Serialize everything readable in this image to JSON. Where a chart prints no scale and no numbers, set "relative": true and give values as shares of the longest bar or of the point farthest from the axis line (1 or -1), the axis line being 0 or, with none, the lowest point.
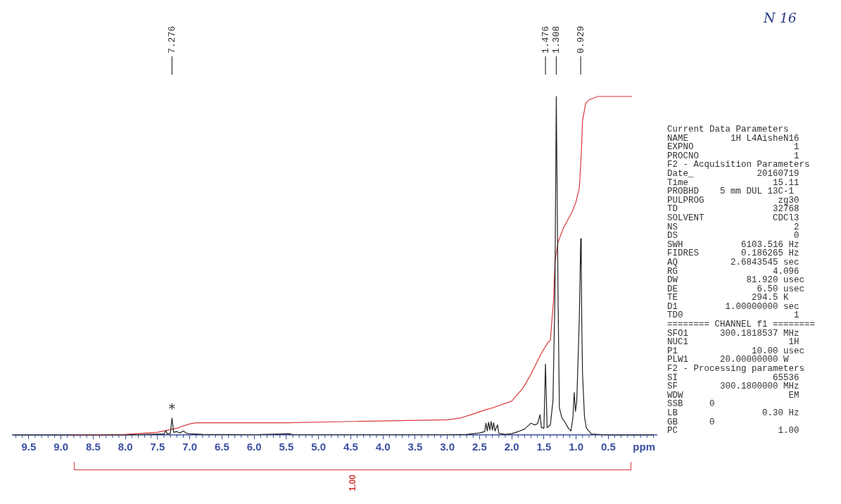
{
  "chart_data": {
    "type": "line",
    "relative": true,
    "xlabel": "ppm",
    "legend": false,
    "grid": false,
    "marker": "none",
    "line_style": "solid",
    "xlim": [
      9.75,
      -0.25
    ],
    "xticks": [
      {
        "value": 9.7,
        "label": null
      },
      {
        "value": 9.6,
        "label": null
      },
      9.5,
      {
        "value": 9.4,
        "label": null
      },
      {
        "value": 9.3,
        "label": null
      },
      {
        "value": 9.2,
        "label": null
      },
      {
        "value": 9.1,
        "label": null
      },
      {
        "value": 9,
        "label": "9.0"
      },
      {
        "value": 8.9,
        "label": null
      },
      {
        "value": 8.8,
        "label": null
      },
      {
        "value": 8.7,
        "label": null
      },
      {
        "value": 8.6,
        "label": null
      },
      8.5,
      {
        "value": 8.4,
        "label": null
      },
      {
        "value": 8.3,
        "label": null
      },
      {
        "value": 8.2,
        "label": null
      },
      {
        "value": 8.1,
        "label": null
      },
      {
        "value": 8,
        "label": "8.0"
      },
      {
        "value": 7.9,
        "label": null
      },
      {
        "value": 7.8,
        "label": null
      },
      {
        "value": 7.7,
        "label": null
      },
      {
        "value": 7.6,
        "label": null
      },
      7.5,
      {
        "value": 7.4,
        "label": null
      },
      {
        "value": 7.3,
        "label": null
      },
      {
        "value": 7.2,
        "label": null
      },
      {
        "value": 7.1,
        "label": null
      },
      {
        "value": 7,
        "label": "7.0"
      },
      {
        "value": 6.9,
        "label": null
      },
      {
        "value": 6.8,
        "label": null
      },
      {
        "value": 6.7,
        "label": null
      },
      {
        "value": 6.6,
        "label": null
      },
      6.5,
      {
        "value": 6.4,
        "label": null
      },
      {
        "value": 6.3,
        "label": null
      },
      {
        "value": 6.2,
        "label": null
      },
      {
        "value": 6.1,
        "label": null
      },
      {
        "value": 6,
        "label": "6.0"
      },
      {
        "value": 5.9,
        "label": null
      },
      {
        "value": 5.8,
        "label": null
      },
      {
        "value": 5.7,
        "label": null
      },
      {
        "value": 5.6,
        "label": null
      },
      5.5,
      {
        "value": 5.4,
        "label": null
      },
      {
        "value": 5.3,
        "label": null
      },
      {
        "value": 5.2,
        "label": null
      },
      {
        "value": 5.1,
        "label": null
      },
      {
        "value": 5,
        "label": "5.0"
      },
      {
        "value": 4.9,
        "label": null
      },
      {
        "value": 4.8,
        "label": null
      },
      {
        "value": 4.7,
        "label": null
      },
      {
        "value": 4.6,
        "label": null
      },
      4.5,
      {
        "value": 4.4,
        "label": null
      },
      {
        "value": 4.3,
        "label": null
      },
      {
        "value": 4.2,
        "label": null
      },
      {
        "value": 4.1,
        "label": null
      },
      {
        "value": 4,
        "label": "4.0"
      },
      {
        "value": 3.9,
        "label": null
      },
      {
        "value": 3.8,
        "label": null
      },
      {
        "value": 3.7,
        "label": null
      },
      {
        "value": 3.6,
        "label": null
      },
      3.5,
      {
        "value": 3.4,
        "label": null
      },
      {
        "value": 3.3,
        "label": null
      },
      {
        "value": 3.2,
        "label": null
      },
      {
        "value": 3.1,
        "label": null
      },
      {
        "value": 3,
        "label": "3.0"
      },
      {
        "value": 2.9,
        "label": null
      },
      {
        "value": 2.8,
        "label": null
      },
      {
        "value": 2.7,
        "label": null
      },
      {
        "value": 2.6,
        "label": null
      },
      2.5,
      {
        "value": 2.4,
        "label": null
      },
      {
        "value": 2.3,
        "label": null
      },
      {
        "value": 2.2,
        "label": null
      },
      {
        "value": 2.1,
        "label": null
      },
      {
        "value": 2,
        "label": "2.0"
      },
      {
        "value": 1.9,
        "label": null
      },
      {
        "value": 1.8,
        "label": null
      },
      {
        "value": 1.7,
        "label": null
      },
      {
        "value": 1.6,
        "label": null
      },
      1.5,
      {
        "value": 1.4,
        "label": null
      },
      {
        "value": 1.3,
        "label": null
      },
      {
        "value": 1.2,
        "label": null
      },
      {
        "value": 1.1,
        "label": null
      },
      {
        "value": 1,
        "label": "1.0"
      },
      {
        "value": 0.9,
        "label": null
      },
      {
        "value": 0.8,
        "label": null
      },
      {
        "value": 0.7,
        "label": null
      },
      {
        "value": 0.6,
        "label": null
      },
      0.5,
      {
        "value": 0.4,
        "label": null
      },
      {
        "value": 0.3,
        "label": null
      },
      {
        "value": 0.2,
        "label": null
      },
      {
        "value": 0.1,
        "label": null
      },
      {
        "value": 0,
        "label": null
      },
      {
        "value": -0.1,
        "label": null
      },
      {
        "value": -0.2,
        "label": null
      }
    ],
    "series": [
      {
        "color": "#222222",
        "x": [
          9.74,
          8.0,
          7.5,
          7.4,
          7.37,
          7.35,
          7.3,
          7.276,
          7.25,
          7.2,
          7.15,
          7.1,
          7.05,
          7.0,
          6.8,
          6.0,
          5.45,
          5.4,
          4.0,
          3.0,
          2.7,
          2.5,
          2.42,
          2.4,
          2.38,
          2.36,
          2.34,
          2.32,
          2.3,
          2.28,
          2.26,
          2.22,
          2.2,
          2.1,
          2.0,
          1.9,
          1.8,
          1.7,
          1.65,
          1.6,
          1.56,
          1.54,
          1.5,
          1.476,
          1.45,
          1.4,
          1.36,
          1.33,
          1.308,
          1.28,
          1.26,
          1.22,
          1.18,
          1.12,
          1.08,
          1.05,
          1.03,
          1.01,
          0.99,
          0.97,
          0.95,
          0.94,
          0.929,
          0.92,
          0.91,
          0.9,
          0.87,
          0.84,
          0.76,
          0.5,
          -0.2
        ],
        "values": [
          0,
          0,
          0.003,
          0.003,
          0.013,
          0.003,
          0.005,
          0.05,
          0.008,
          0.01,
          0.006,
          0.012,
          0.005,
          0.004,
          0.002,
          0.001,
          0.004,
          0.001,
          0.001,
          0.001,
          0.002,
          0.006,
          0.01,
          0.035,
          0.012,
          0.038,
          0.015,
          0.04,
          0.015,
          0.036,
          0.012,
          0.03,
          0.005,
          0.002,
          0.004,
          0.01,
          0.018,
          0.035,
          0.03,
          0.033,
          0.06,
          0.022,
          0.02,
          0.21,
          0.022,
          0.03,
          0.1,
          0.4,
          1.0,
          0.4,
          0.08,
          0.05,
          0.04,
          0.02,
          0.012,
          0.05,
          0.125,
          0.07,
          0.1,
          0.22,
          0.35,
          0.45,
          0.58,
          0.49,
          0.3,
          0.18,
          0.054,
          0.02,
          0.003,
          0,
          0
        ]
      },
      {
        "color": "#d9383a",
        "x": [
          8.85,
          8.0,
          7.5,
          7.2,
          7.0,
          6.9,
          5.5,
          4.5,
          3.0,
          2.8,
          2.6,
          2.4,
          2.3,
          2.0,
          1.82,
          1.7,
          1.56,
          1.45,
          1.4,
          1.35,
          1.33,
          1.28,
          1.2,
          1.06,
          1.0,
          0.95,
          0.92,
          0.9,
          0.85,
          0.8,
          0.66,
          0.13
        ],
        "values": [
          0,
          0.002,
          0.008,
          0.02,
          0.033,
          0.036,
          0.036,
          0.04,
          0.045,
          0.05,
          0.062,
          0.075,
          0.08,
          0.1,
          0.14,
          0.18,
          0.234,
          0.27,
          0.28,
          0.4,
          0.51,
          0.57,
          0.61,
          0.66,
          0.69,
          0.73,
          0.83,
          0.93,
          0.98,
          0.99,
          1.0,
          1.0
        ]
      }
    ],
    "annotations": [
      {
        "text": "7.276",
        "x": 7.276
      },
      {
        "text": "1.476",
        "x": 1.476
      },
      {
        "text": "1.308",
        "x": 1.308
      },
      {
        "text": "0.929",
        "x": 0.929
      },
      {
        "text": "*",
        "x": 7.276,
        "y": 0.05
      },
      "N 16",
      "Current Data Parameters",
      "NAME        1H L4AisheN16",
      "EXPNO                   1",
      "PROCNO                  1",
      "F2 - Acquisition Parameters",
      "Date_            20160719",
      "Time                15.11",
      "PROBHD    5 mm DUL 13C-1",
      "PULPROG              zg30",
      "TD                  32768",
      "SOLVENT             CDCl3",
      "NS                      2",
      "DS                      0",
      "SWH           6103.516 Hz",
      "FIDRES        0.186265 Hz",
      "AQ          2.6843545 sec",
      "RG                  4.096",
      "DW             81.920 usec",
      "DE               6.50 usec",
      "TE              294.5 K",
      "D1         1.00000000 sec",
      "TD0                     1",
      "======== CHANNEL f1 ========",
      "SFO1      300.1818537 MHz",
      "NUC1                   1H",
      "P1              10.00 usec",
      "PLW1      20.00000000 W",
      "F2 - Processing parameters",
      "SI                  65536",
      "SF        300.1800000 MHz",
      "WDW                    EM",
      "SSB     0",
      "LB                0.30 Hz",
      "GB      0",
      "PC                   1.00",
      "1.00"
    ]
  }
}
